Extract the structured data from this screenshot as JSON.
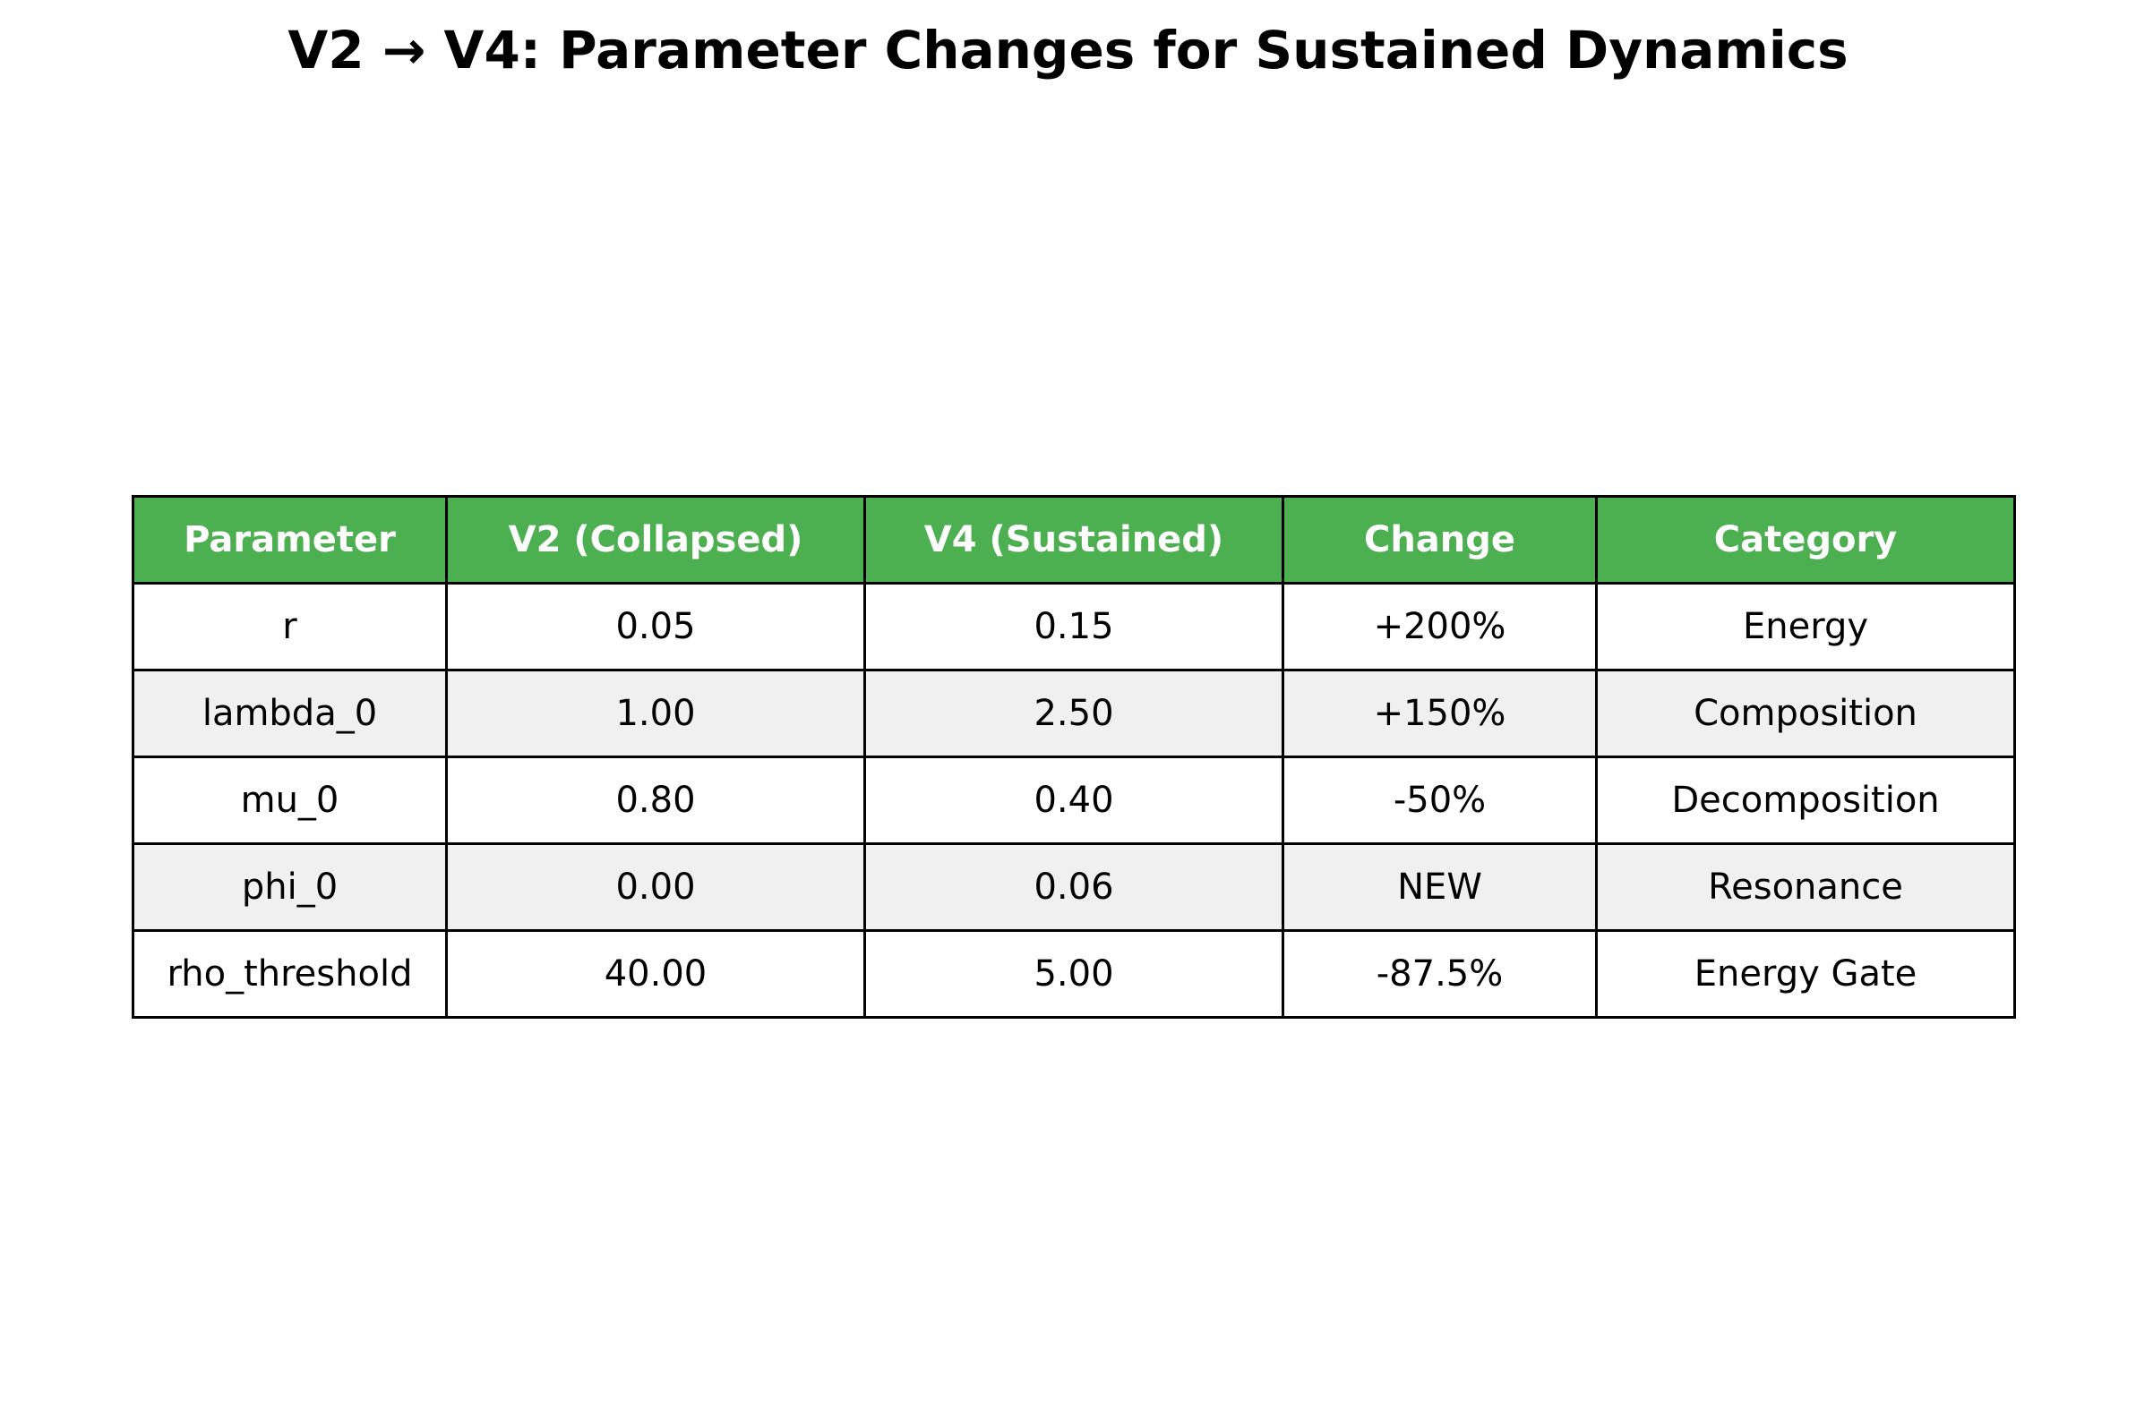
{
  "colors": {
    "header_bg": "#4CAF50",
    "header_text": "#ffffff",
    "row_alt_bg": "#f0f0f0",
    "row_bg": "#ffffff",
    "border": "#000000"
  },
  "chart_data": {
    "type": "table",
    "title": "V2 → V4: Parameter Changes for Sustained Dynamics",
    "columns": [
      "Parameter",
      "V2 (Collapsed)",
      "V4 (Sustained)",
      "Change",
      "Category"
    ],
    "rows": [
      [
        "r",
        "0.05",
        "0.15",
        "+200%",
        "Energy"
      ],
      [
        "lambda_0",
        "1.00",
        "2.50",
        "+150%",
        "Composition"
      ],
      [
        "mu_0",
        "0.80",
        "0.40",
        "-50%",
        "Decomposition"
      ],
      [
        "phi_0",
        "0.00",
        "0.06",
        "NEW",
        "Resonance"
      ],
      [
        "rho_threshold",
        "40.00",
        "5.00",
        "-87.5%",
        "Energy Gate"
      ]
    ]
  }
}
